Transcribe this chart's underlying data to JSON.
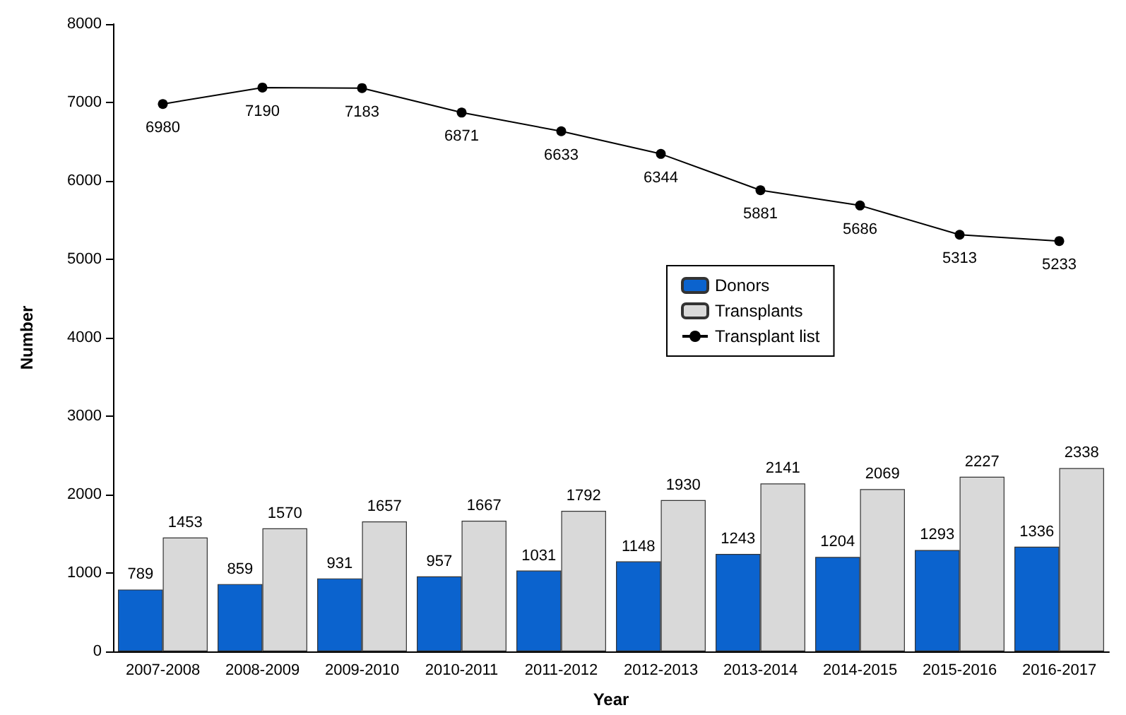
{
  "chart_data": {
    "type": "bar",
    "xlabel": "Year",
    "ylabel": "Number",
    "categories": [
      "2007-2008",
      "2008-2009",
      "2009-2010",
      "2010-2011",
      "2011-2012",
      "2012-2013",
      "2013-2014",
      "2014-2015",
      "2015-2016",
      "2016-2017"
    ],
    "series": [
      {
        "name": "Donors",
        "color": "#0b63ce",
        "values": [
          789,
          859,
          931,
          957,
          1031,
          1148,
          1243,
          1204,
          1293,
          1336
        ]
      },
      {
        "name": "Transplants",
        "color": "#d9d9d9",
        "values": [
          1453,
          1570,
          1657,
          1667,
          1792,
          1930,
          2141,
          2069,
          2227,
          2338
        ]
      },
      {
        "name": "Transplant list",
        "type": "line",
        "color": "#000000",
        "marker": "circle",
        "values": [
          6980,
          7190,
          7183,
          6871,
          6633,
          6344,
          5881,
          5686,
          5313,
          5233
        ]
      }
    ],
    "ylim": [
      0,
      8000
    ],
    "yticks": [
      0,
      1000,
      2000,
      3000,
      4000,
      5000,
      6000,
      7000,
      8000
    ],
    "data_labels": true,
    "grid": false,
    "legend": "center"
  }
}
